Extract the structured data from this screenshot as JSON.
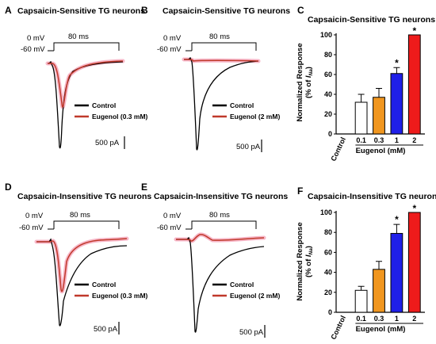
{
  "colors": {
    "control": "#000000",
    "eugenol": "#c0392b",
    "eugenol_glow": "#f7b7c8",
    "bar_white": "#ffffff",
    "bar_orange": "#f0961f",
    "bar_blue": "#1f1fe8",
    "bar_red": "#ee1b1b"
  },
  "panels": {
    "A": {
      "label": "A",
      "title": "Capsaicin-Sensitive TG neurons",
      "v0": "0  mV",
      "v1": "-60  mV",
      "duration": "80 ms",
      "legend_control": "Control",
      "legend_eugenol": "Eugenol (0.3 mM)",
      "scale": "500 pA"
    },
    "B": {
      "label": "B",
      "title": "Capsaicin-Sensitive TG neurons",
      "v0": "0  mV",
      "v1": "-60  mV",
      "duration": "80 ms",
      "legend_control": "Control",
      "legend_eugenol": "Eugenol (2 mM)",
      "scale": "500 pA"
    },
    "D": {
      "label": "D",
      "title": "Capsaicin-Insensitive TG neurons",
      "v0": "0  mV",
      "v1": "-60  mV",
      "duration": "80 ms",
      "legend_control": "Control",
      "legend_eugenol": "Eugenol (0.3 mM)",
      "scale": "500 pA"
    },
    "E": {
      "label": "E",
      "title": "Capsaicin-Insensitive TG neurons",
      "v0": "0  mV",
      "v1": "-60  mV",
      "duration": "80 ms",
      "legend_control": "Control",
      "legend_eugenol": "Eugenol (2 mM)",
      "scale": "500 pA"
    }
  },
  "chart_data": [
    {
      "panel": "C",
      "type": "bar",
      "title": "Capsaicin-Sensitive TG neurons",
      "xlabel": "Eugenol (mM)",
      "ylabel_line1": "Normalized Response",
      "ylabel_line2_prefix": "(% of ",
      "ylabel_line2_sub": "Na",
      "ylabel_line2_suffix": ")",
      "ylabel_I": "I",
      "categories": [
        "Control",
        "0.1",
        "0.3",
        "1",
        "2"
      ],
      "values": [
        null,
        32,
        37,
        61,
        100
      ],
      "errors": [
        null,
        8,
        9,
        6,
        0
      ],
      "significant": [
        false,
        false,
        false,
        true,
        true
      ],
      "star": "*",
      "ylim": [
        0,
        100
      ],
      "yticks": [
        "0",
        "20",
        "40",
        "60",
        "80",
        "100"
      ]
    },
    {
      "panel": "F",
      "type": "bar",
      "title": "Capsaicin-Insensitive TG neurons",
      "xlabel": "Eugenol (mM)",
      "ylabel_line1": "Normalized Response",
      "ylabel_line2_prefix": "(% of ",
      "ylabel_line2_sub": "Na",
      "ylabel_line2_suffix": ")",
      "ylabel_I": "I",
      "categories": [
        "Control",
        "0.1",
        "0.3",
        "1",
        "2"
      ],
      "values": [
        null,
        22,
        43,
        79,
        100
      ],
      "errors": [
        null,
        4,
        8,
        9,
        0
      ],
      "significant": [
        false,
        false,
        false,
        true,
        true
      ],
      "star": "*",
      "ylim": [
        0,
        100
      ],
      "yticks": [
        "0",
        "20",
        "40",
        "60",
        "80",
        "100"
      ]
    }
  ],
  "panel_labels": {
    "C": "C",
    "F": "F"
  }
}
